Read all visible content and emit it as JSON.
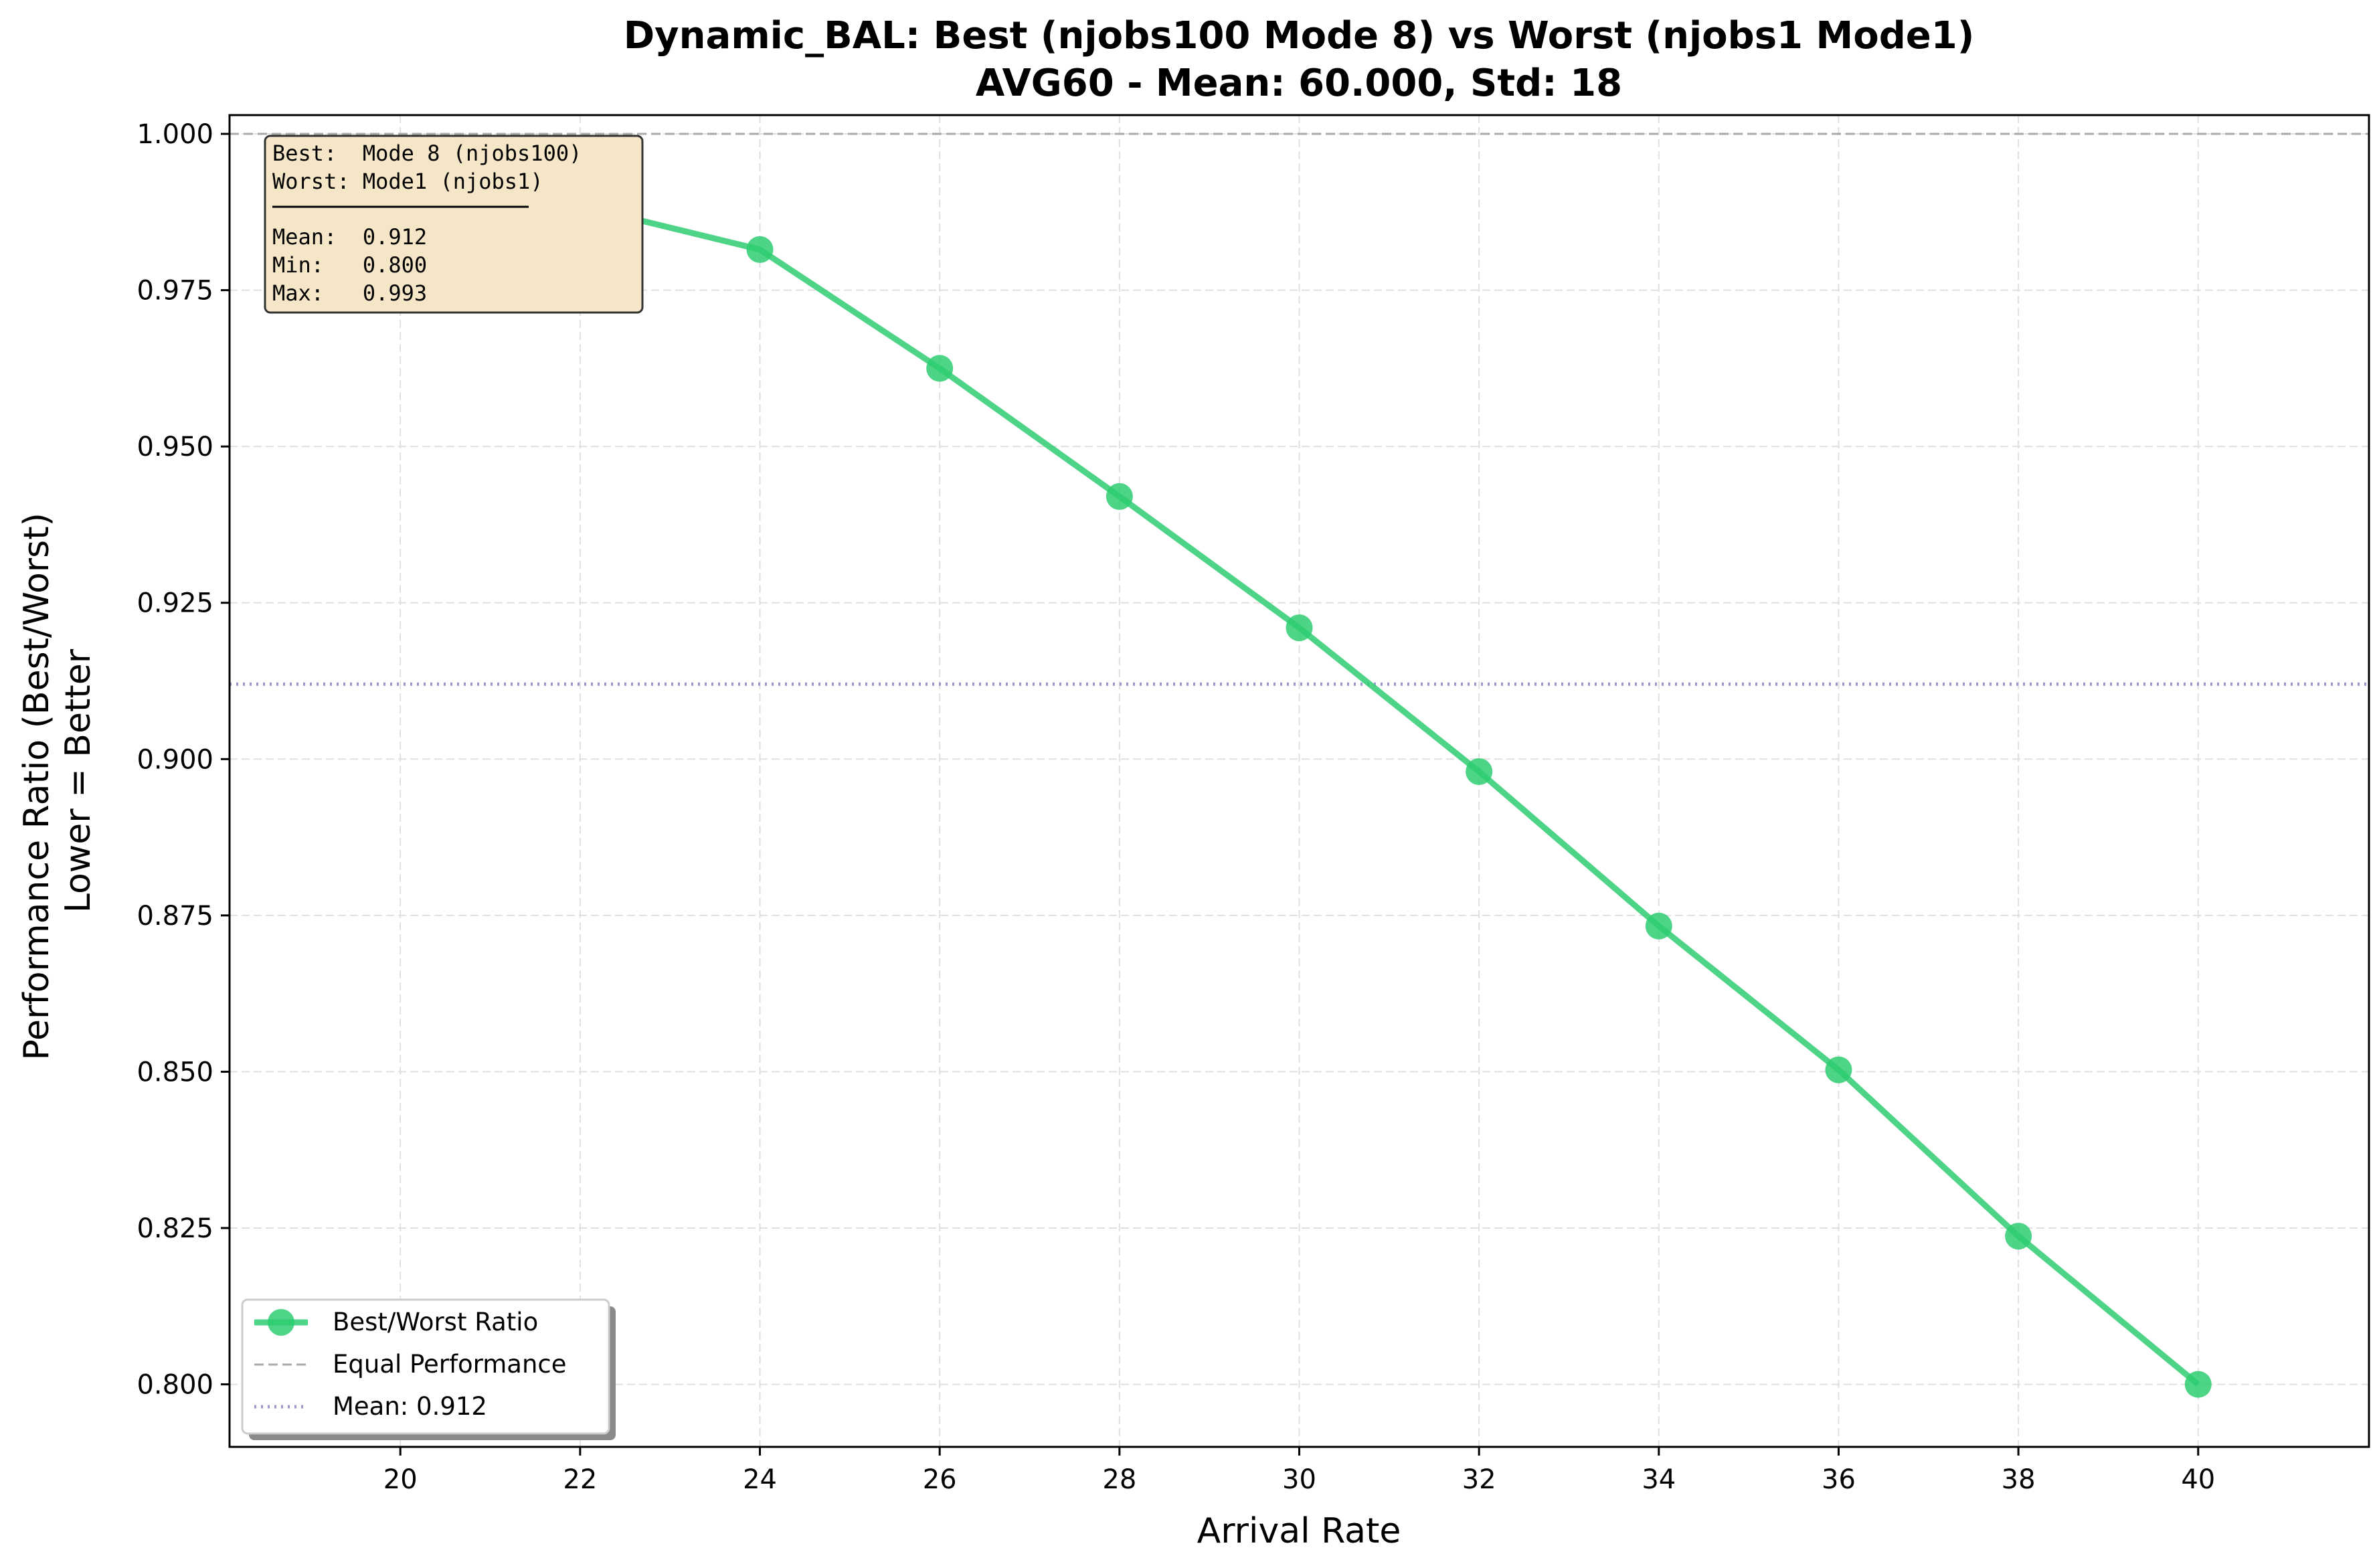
{
  "chart_data": {
    "type": "line",
    "title": "Dynamic_BAL: Best (njobs100 Mode 8) vs Worst (njobs1 Mode1)",
    "subtitle": "AVG60 - Mean: 60.000, Std: 18",
    "xlabel": "Arrival Rate",
    "ylabel_line1": "Performance Ratio (Best/Worst)",
    "ylabel_line2": "Lower = Better",
    "xlim": [
      18.1,
      41.9
    ],
    "ylim": [
      0.79,
      1.003
    ],
    "xticks": [
      20,
      22,
      24,
      26,
      28,
      30,
      32,
      34,
      36,
      38,
      40
    ],
    "yticks": [
      0.8,
      0.825,
      0.85,
      0.875,
      0.9,
      0.925,
      0.95,
      0.975,
      1.0
    ],
    "ytick_labels": [
      "0.800",
      "0.825",
      "0.850",
      "0.875",
      "0.900",
      "0.925",
      "0.950",
      "0.975",
      "1.000"
    ],
    "grid": true,
    "series": [
      {
        "name": "Best/Worst Ratio",
        "color": "#2ecc71",
        "x": [
          20,
          22,
          24,
          26,
          28,
          30,
          32,
          34,
          36,
          38,
          40
        ],
        "y": [
          0.993,
          0.9885,
          0.9815,
          0.9625,
          0.942,
          0.921,
          0.898,
          0.8733,
          0.8503,
          0.8237,
          0.8
        ]
      }
    ],
    "reference_lines": [
      {
        "name": "Equal Performance",
        "y": 1.0,
        "color": "#aaaaaa",
        "style": "dashed"
      },
      {
        "name": "Mean: 0.912",
        "y": 0.912,
        "color": "#9999cc",
        "style": "dotted"
      }
    ],
    "legend_position": "bottom-left",
    "stats_box": {
      "lines": [
        "Best:  Mode 8 (njobs100)",
        "Worst: Mode1 (njobs1)"
      ],
      "stats": [
        "Mean:  0.912",
        "Min:   0.800",
        "Max:   0.993"
      ],
      "background": "#f5deb3"
    }
  }
}
